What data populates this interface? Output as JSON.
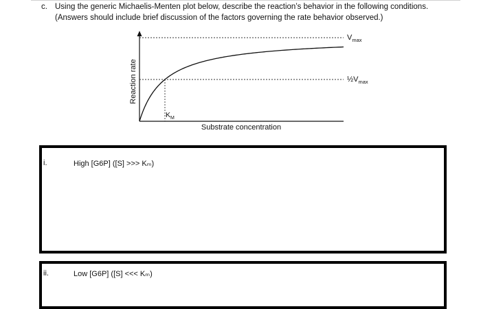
{
  "question": {
    "marker": "c.",
    "line1": "Using the generic Michaelis-Menten plot below, describe the reaction’s behavior in the following conditions.",
    "line2": "(Answers should include brief discussion of the factors governing the rate behavior observed.)"
  },
  "figure": {
    "ylabel": "Reaction rate",
    "xlabel": "Substrate concentration",
    "vmax_main": "V",
    "vmax_sub": "max",
    "half_prefix": "½V",
    "half_sub": "max",
    "km_main": "K",
    "km_sub": "M"
  },
  "chart_data": {
    "type": "line",
    "title": "",
    "xlabel": "Substrate concentration",
    "ylabel": "Reaction rate",
    "curve": "michaelis-menten",
    "vmax": 1,
    "km": 1,
    "xlim": [
      0,
      30
    ],
    "ylim": [
      0,
      1.05
    ],
    "reference_lines": [
      {
        "label": "Vmax",
        "y": 1
      },
      {
        "label": "½Vmax",
        "y": 0.5
      },
      {
        "label": "KM",
        "x": 1
      }
    ],
    "grid": false
  },
  "items": [
    {
      "numeral": "i.",
      "label": "High [G6P] ([S] >>> Kₘ)"
    },
    {
      "numeral": "ii.",
      "label": "Low [G6P] ([S] <<< Kₘ)"
    }
  ]
}
